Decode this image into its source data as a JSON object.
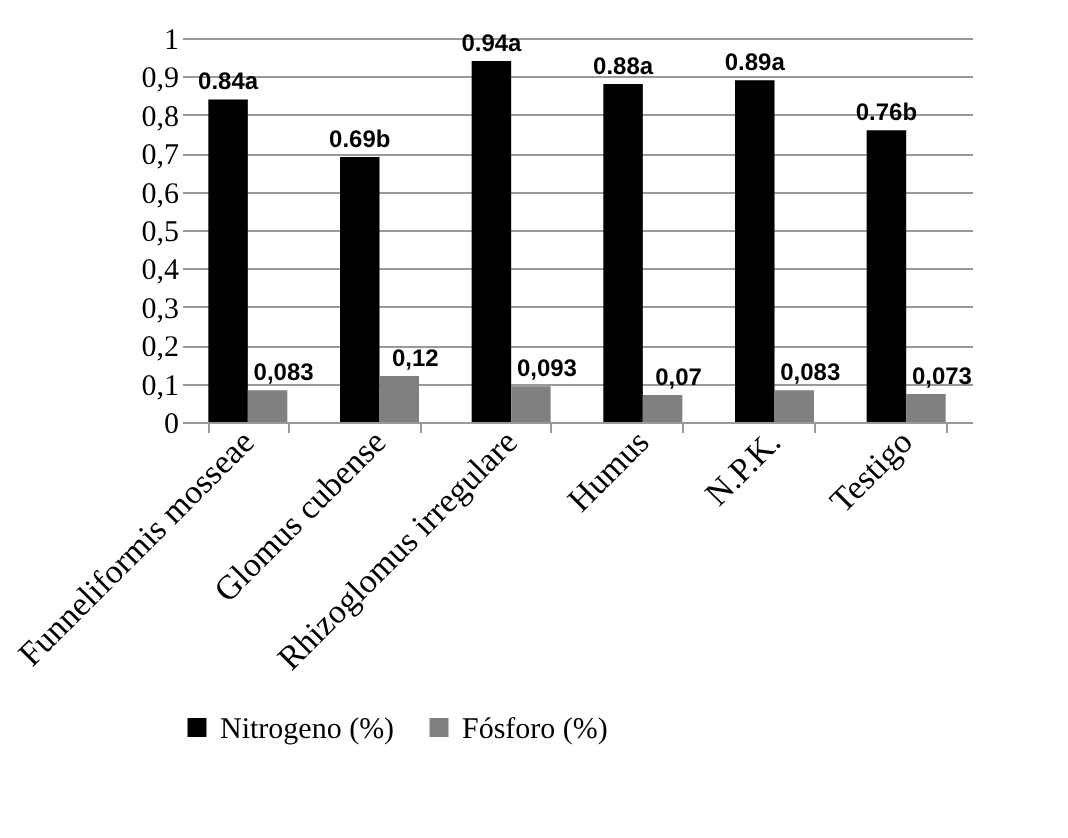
{
  "chart_data": {
    "type": "bar",
    "categories": [
      "Funneliformis mosseae",
      "Glomus cubense",
      "Rhizoglomus irregulare",
      "Humus",
      "N.P.K.",
      "Testigo"
    ],
    "series": [
      {
        "name": "Nitrogeno (%)",
        "color": "#000000",
        "values": [
          0.84,
          0.69,
          0.94,
          0.88,
          0.89,
          0.76
        ],
        "value_labels": [
          "0.84a",
          "0.69b",
          "0.94a",
          "0.88a",
          "0.89a",
          "0.76b"
        ]
      },
      {
        "name": "Fósforo (%)",
        "color": "#808080",
        "values": [
          0.083,
          0.12,
          0.093,
          0.07,
          0.083,
          0.073
        ],
        "value_labels": [
          "0,083",
          "0,12",
          "0,093",
          "0,07",
          "0,083",
          "0,073"
        ]
      }
    ],
    "ylim": [
      0,
      1
    ],
    "yticks": [
      0,
      {
        "value": 0.1,
        "label": "0,1"
      },
      {
        "value": 0.2,
        "label": "0,2"
      },
      {
        "value": 0.3,
        "label": "0,3"
      },
      {
        "value": 0.4,
        "label": "0,4"
      },
      {
        "value": 0.5,
        "label": "0,5"
      },
      {
        "value": 0.6,
        "label": "0,6"
      },
      {
        "value": 0.7,
        "label": "0,7"
      },
      {
        "value": 0.8,
        "label": "0,8"
      },
      {
        "value": 0.9,
        "label": "0,9"
      },
      1
    ],
    "grid": "y",
    "legend": "bottom"
  }
}
